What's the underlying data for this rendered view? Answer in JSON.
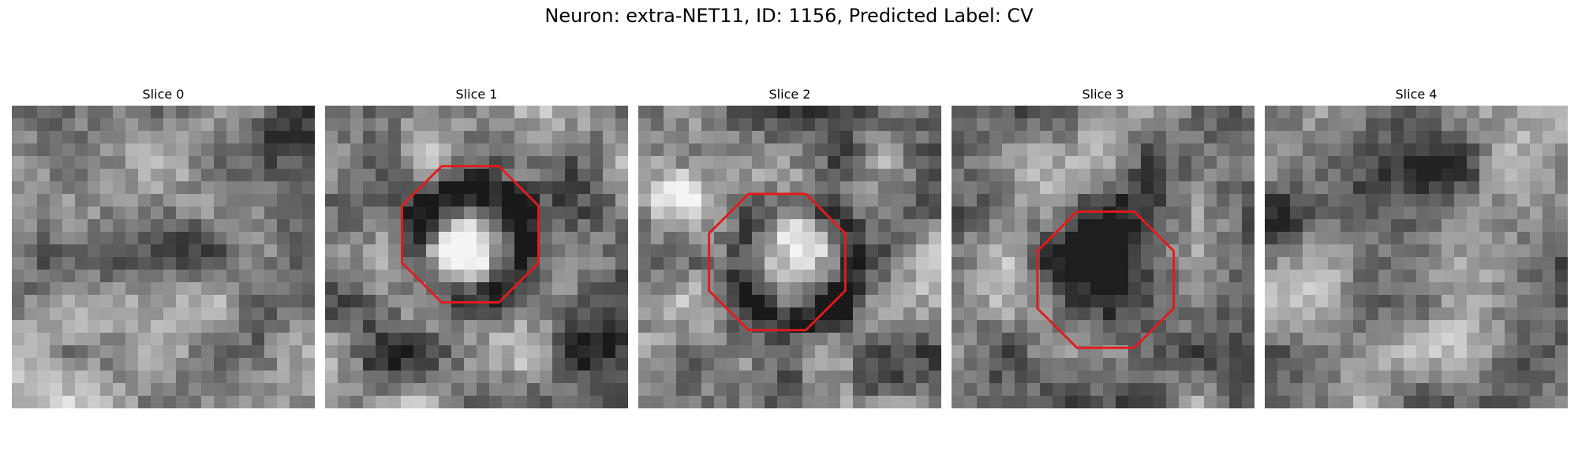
{
  "figure": {
    "title": "Neuron: extra-NET11, ID: 1156, Predicted Label: CV"
  },
  "slices": [
    {
      "title": "Slice 0",
      "has_roi": false
    },
    {
      "title": "Slice 1",
      "has_roi": true
    },
    {
      "title": "Slice 2",
      "has_roi": true
    },
    {
      "title": "Slice 3",
      "has_roi": true
    },
    {
      "title": "Slice 4",
      "has_roi": false
    }
  ],
  "colors": {
    "roi_outline": "#e41a1c",
    "background": "#ffffff",
    "colormap": "grayscale"
  }
}
